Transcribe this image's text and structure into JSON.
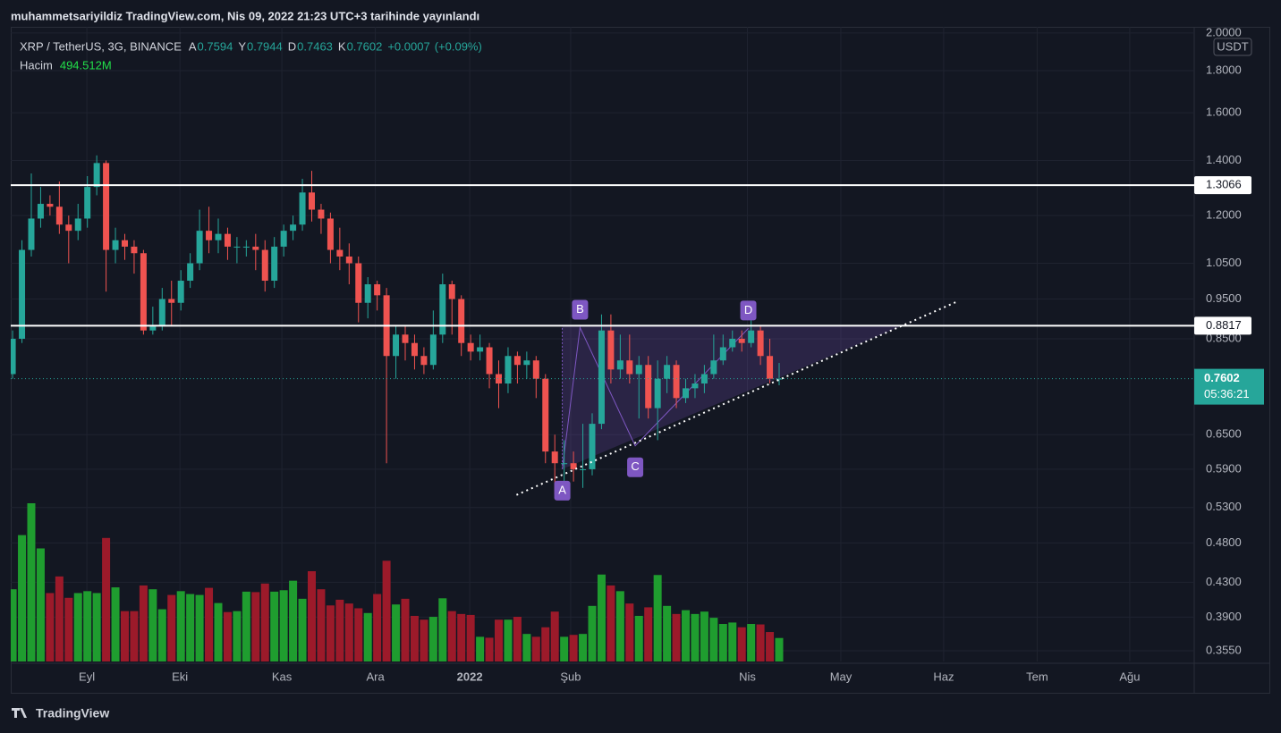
{
  "header": {
    "published": "muhammetsariyildiz TradingView.com, Nis 09, 2022 21:23 UTC+3 tarihinde yayınlandı"
  },
  "footer": {
    "brand": "TradingView"
  },
  "chart_data": {
    "type": "candlestick",
    "title": "XRP / TetherUS, 3G, BINANCE",
    "ohlc_labels": [
      "A",
      "Y",
      "D",
      "K"
    ],
    "change": {
      "value": 0.0007,
      "label": "+0.0007"
    },
    "change_pct": {
      "value": 0.09,
      "label": "(+0.09%)"
    },
    "volume_title": "Hacim",
    "volume_last_label": "494.512M",
    "currency": "USDT",
    "countdown": "05:36:21",
    "log": true,
    "grid": true,
    "up_color": "#26a69a",
    "down_color": "#ef5350",
    "volume_up_color": "#1f9d2f",
    "volume_down_color": "#9c1a2a",
    "level_color": "#ffffff",
    "pattern_color": "#7e57c2",
    "open": [
      0.77,
      0.85,
      1.09,
      1.19,
      1.24,
      1.23,
      1.17,
      1.15,
      1.19,
      1.3,
      1.39,
      1.09,
      1.12,
      1.1,
      1.08,
      0.87,
      0.88,
      0.95,
      0.94,
      1.0,
      1.05,
      1.15,
      1.12,
      1.14,
      1.1,
      1.1,
      1.1,
      1.09,
      1.0,
      1.1,
      1.15,
      1.17,
      1.28,
      1.22,
      1.19,
      1.09,
      1.07,
      1.05,
      0.94,
      0.99,
      0.96,
      0.81,
      0.86,
      0.84,
      0.81,
      0.79,
      0.86,
      0.99,
      0.95,
      0.84,
      0.82,
      0.83,
      0.77,
      0.75,
      0.81,
      0.79,
      0.8,
      0.76,
      0.62,
      0.6,
      0.6,
      0.59,
      0.59,
      0.67,
      0.87,
      0.78,
      0.8,
      0.77,
      0.79,
      0.7,
      0.76,
      0.79,
      0.72,
      0.74,
      0.75,
      0.77,
      0.8,
      0.83,
      0.85,
      0.84,
      0.87,
      0.81,
      0.7594
    ],
    "high": [
      0.87,
      1.12,
      1.35,
      1.3,
      1.27,
      1.32,
      1.2,
      1.24,
      1.34,
      1.42,
      1.4,
      1.16,
      1.14,
      1.12,
      1.09,
      0.93,
      0.98,
      1.0,
      1.03,
      1.08,
      1.22,
      1.23,
      1.19,
      1.16,
      1.13,
      1.12,
      1.14,
      1.12,
      1.13,
      1.17,
      1.2,
      1.33,
      1.36,
      1.24,
      1.21,
      1.16,
      1.11,
      1.07,
      1.01,
      1.0,
      0.98,
      0.88,
      0.88,
      0.86,
      0.83,
      0.92,
      1.02,
      1.0,
      0.96,
      0.86,
      0.86,
      0.84,
      0.8,
      0.83,
      0.82,
      0.82,
      0.81,
      0.77,
      0.65,
      0.64,
      0.62,
      0.67,
      0.69,
      0.91,
      0.91,
      0.86,
      0.86,
      0.81,
      0.81,
      0.8,
      0.81,
      0.8,
      0.76,
      0.77,
      0.79,
      0.86,
      0.86,
      0.87,
      0.87,
      0.93,
      0.88,
      0.85,
      0.7944
    ],
    "low": [
      0.76,
      0.84,
      1.07,
      1.16,
      1.2,
      1.14,
      1.05,
      1.12,
      1.16,
      1.27,
      0.97,
      1.05,
      1.06,
      1.02,
      0.86,
      0.86,
      0.87,
      0.88,
      0.92,
      0.98,
      1.03,
      1.08,
      1.08,
      1.06,
      1.05,
      1.07,
      1.03,
      0.97,
      0.98,
      1.07,
      1.12,
      1.15,
      1.18,
      1.14,
      1.05,
      1.03,
      0.99,
      0.89,
      0.9,
      0.92,
      0.6,
      0.76,
      0.8,
      0.78,
      0.77,
      0.78,
      0.84,
      0.86,
      0.81,
      0.8,
      0.8,
      0.74,
      0.7,
      0.73,
      0.75,
      0.76,
      0.72,
      0.6,
      0.55,
      0.57,
      0.57,
      0.56,
      0.58,
      0.66,
      0.75,
      0.76,
      0.75,
      0.68,
      0.68,
      0.64,
      0.73,
      0.7,
      0.71,
      0.72,
      0.73,
      0.76,
      0.79,
      0.82,
      0.82,
      0.83,
      0.79,
      0.75,
      0.7463
    ],
    "close": [
      0.85,
      1.09,
      1.19,
      1.24,
      1.23,
      1.17,
      1.15,
      1.19,
      1.3,
      1.39,
      1.09,
      1.12,
      1.1,
      1.08,
      0.87,
      0.88,
      0.95,
      0.94,
      1.0,
      1.05,
      1.15,
      1.12,
      1.14,
      1.1,
      1.1,
      1.1,
      1.09,
      1.0,
      1.1,
      1.15,
      1.17,
      1.28,
      1.22,
      1.19,
      1.09,
      1.07,
      1.05,
      0.94,
      0.99,
      0.96,
      0.81,
      0.86,
      0.84,
      0.81,
      0.79,
      0.86,
      0.99,
      0.95,
      0.84,
      0.82,
      0.83,
      0.77,
      0.75,
      0.81,
      0.79,
      0.8,
      0.76,
      0.62,
      0.6,
      0.6,
      0.59,
      0.59,
      0.67,
      0.87,
      0.78,
      0.8,
      0.77,
      0.79,
      0.7,
      0.76,
      0.79,
      0.72,
      0.74,
      0.75,
      0.77,
      0.8,
      0.83,
      0.85,
      0.84,
      0.87,
      0.81,
      0.76,
      0.7602
    ],
    "volume": [
      1520,
      2660,
      3330,
      2380,
      1440,
      1790,
      1340,
      1440,
      1480,
      1440,
      2600,
      1560,
      1060,
      1060,
      1600,
      1520,
      1100,
      1400,
      1480,
      1420,
      1400,
      1550,
      1230,
      1040,
      1060,
      1470,
      1460,
      1640,
      1470,
      1500,
      1700,
      1320,
      1900,
      1520,
      1180,
      1300,
      1220,
      1120,
      1020,
      1420,
      2120,
      1200,
      1320,
      960,
      880,
      940,
      1330,
      1060,
      1000,
      980,
      520,
      500,
      880,
      880,
      940,
      580,
      520,
      720,
      1050,
      520,
      560,
      580,
      1170,
      1830,
      1600,
      1480,
      1220,
      960,
      1140,
      1820,
      1170,
      1000,
      1080,
      1000,
      1050,
      920,
      790,
      820,
      720,
      790,
      780,
      620,
      494.512
    ],
    "xlim": [
      -0.2,
      126.4
    ],
    "xticks": [
      {
        "value": 7.94,
        "label": "Eyl"
      },
      {
        "value": 17.9,
        "label": "Eki"
      },
      {
        "value": 28.8,
        "label": "Kas"
      },
      {
        "value": 38.8,
        "label": "Ara"
      },
      {
        "value": 48.9,
        "label": "2022"
      },
      {
        "value": 59.7,
        "label": "Şub"
      },
      {
        "value": 78.6,
        "label": "Nis"
      },
      {
        "value": 88.6,
        "label": "May"
      },
      {
        "value": 99.6,
        "label": "Haz"
      },
      {
        "value": 109.6,
        "label": "Tem"
      },
      {
        "value": 119.5,
        "label": "Ağu"
      }
    ],
    "ylim": [
      0.3445,
      2.035
    ],
    "yticks": [
      {
        "value": 2,
        "label": "2.0000"
      },
      {
        "value": 1.8,
        "label": "1.8000"
      },
      {
        "value": 1.6,
        "label": "1.6000"
      },
      {
        "value": 1.4,
        "label": "1.4000"
      },
      {
        "value": 1.2,
        "label": "1.2000"
      },
      {
        "value": 1.05,
        "label": "1.0500"
      },
      {
        "value": 0.95,
        "label": "0.9500"
      },
      {
        "value": 0.85,
        "label": "0.8500"
      },
      {
        "value": 0.65,
        "label": "0.6500"
      },
      {
        "value": 0.59,
        "label": "0.5900"
      },
      {
        "value": 0.53,
        "label": "0.5300"
      },
      {
        "value": 0.48,
        "label": "0.4800"
      },
      {
        "value": 0.43,
        "label": "0.4300"
      },
      {
        "value": 0.39,
        "label": "0.3900"
      },
      {
        "value": 0.355,
        "label": "0.3550"
      }
    ],
    "levels": [
      1.3066,
      0.8817
    ],
    "trendline": {
      "x": [
        53.9,
        101.2
      ],
      "y": [
        0.549,
        0.945
      ]
    },
    "pattern": {
      "labels": [
        "A",
        "B",
        "C",
        "D"
      ],
      "x": [
        58.8,
        60.7,
        66.6,
        78.7
      ],
      "y": [
        0.59,
        0.877,
        0.63,
        0.875
      ]
    }
  }
}
